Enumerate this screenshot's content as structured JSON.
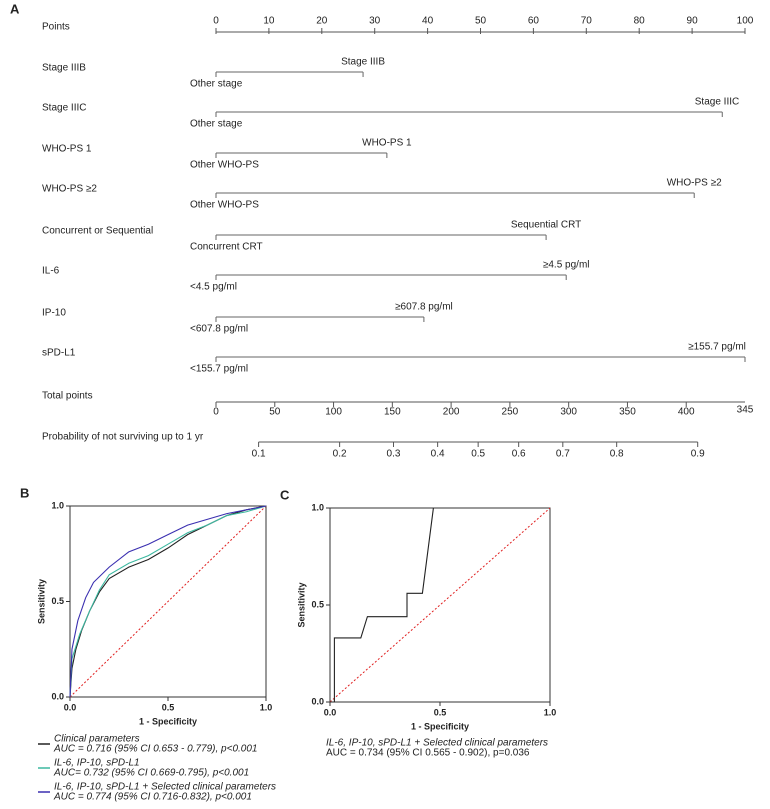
{
  "chart_data": [
    {
      "type": "nomogram",
      "panel_label": "A",
      "points_label": "Points",
      "xlim": [
        0,
        100
      ],
      "xticks": [
        0,
        10,
        20,
        30,
        40,
        50,
        60,
        70,
        80,
        90,
        100
      ],
      "rows": [
        {
          "label": "Stage IIIB",
          "low": "Other stage",
          "high": "Stage IIIB",
          "points": 27.8
        },
        {
          "label": "Stage IIIC",
          "low": "Other stage",
          "high": "Stage IIIC",
          "points": 95.7
        },
        {
          "label": "WHO-PS 1",
          "low": "Other WHO-PS",
          "high": "WHO-PS 1",
          "points": 32.3
        },
        {
          "label": "WHO-PS ≥2",
          "low": "Other WHO-PS",
          "high": "WHO-PS ≥2",
          "points": 90.4
        },
        {
          "label": "Concurrent or Sequential",
          "low": "Concurrent CRT",
          "high": "Sequential CRT",
          "points": 62.4
        },
        {
          "label": "IL-6",
          "low": "<4.5 pg/ml",
          "high": "≥4.5 pg/ml",
          "points": 66.2
        },
        {
          "label": "IP-10",
          "low": "<607.8 pg/ml",
          "high": "≥607.8 pg/ml",
          "points": 39.3
        },
        {
          "label": "sPD-L1",
          "low": "<155.7 pg/ml",
          "high": "≥155.7 pg/ml",
          "points": 100
        }
      ],
      "total_label": "Total points",
      "total_xlim": [
        0,
        450
      ],
      "total_xticks": [
        0,
        50,
        100,
        150,
        200,
        250,
        300,
        350,
        400
      ],
      "total_end_label": "345",
      "prob_label": "Probability of not surviving up to 1 yr",
      "prob_ticks": [
        0.1,
        0.2,
        0.3,
        0.4,
        0.5,
        0.6,
        0.7,
        0.8,
        0.9
      ],
      "logit_intercept": 223,
      "logit_slope": 85
    },
    {
      "type": "line",
      "panel_label": "B",
      "xlabel": "1 - Specificity",
      "ylabel": "Sensitivity",
      "xlim": [
        0,
        1
      ],
      "ylim": [
        0,
        1
      ],
      "xticks": [
        {
          "value": 0,
          "label": "0.0"
        },
        0.5,
        {
          "value": 1,
          "label": "1.0"
        }
      ],
      "yticks": [
        {
          "value": 0,
          "label": "0.0"
        },
        0.5,
        {
          "value": 1,
          "label": "1.0"
        }
      ],
      "series": [
        {
          "name": "Clinical parameters",
          "auc": "AUC = 0.716 (95%  CI 0.653 - 0.779), p<0.001",
          "color": "#222222",
          "x": [
            0,
            0.01,
            0.03,
            0.06,
            0.1,
            0.15,
            0.2,
            0.3,
            0.4,
            0.5,
            0.6,
            0.7,
            0.8,
            0.9,
            1
          ],
          "values": [
            0,
            0.15,
            0.25,
            0.35,
            0.45,
            0.55,
            0.62,
            0.68,
            0.72,
            0.78,
            0.85,
            0.9,
            0.95,
            0.98,
            1
          ]
        },
        {
          "name": "IL-6,  IP-10,  sPD-L1",
          "auc": "AUC= 0.732  (95%  CI 0.669-0.795), p<0.001",
          "color": "#3cb8a0",
          "x": [
            0,
            0.01,
            0.05,
            0.1,
            0.15,
            0.2,
            0.3,
            0.4,
            0.5,
            0.6,
            0.7,
            0.8,
            0.9,
            1
          ],
          "values": [
            0,
            0.2,
            0.33,
            0.45,
            0.56,
            0.64,
            0.7,
            0.74,
            0.8,
            0.86,
            0.9,
            0.95,
            0.97,
            1
          ]
        },
        {
          "name": "IL-6,  IP-10,  sPD-L1 + Selected clinical parameters",
          "auc": "AUC = 0.774  (95%  CI 0.716-0.832), p<0.001",
          "color": "#3a2fb0",
          "x": [
            0,
            0.01,
            0.04,
            0.08,
            0.12,
            0.2,
            0.3,
            0.4,
            0.5,
            0.6,
            0.7,
            0.8,
            0.9,
            1
          ],
          "values": [
            0,
            0.25,
            0.4,
            0.52,
            0.6,
            0.68,
            0.76,
            0.8,
            0.85,
            0.9,
            0.93,
            0.96,
            0.98,
            1
          ]
        }
      ]
    },
    {
      "type": "line",
      "panel_label": "C",
      "xlabel": "1 - Specificity",
      "ylabel": "Sensitivity",
      "xlim": [
        0,
        1
      ],
      "ylim": [
        0,
        1
      ],
      "xticks": [
        {
          "value": 0,
          "label": "0.0"
        },
        0.5,
        {
          "value": 1,
          "label": "1.0"
        }
      ],
      "yticks": [
        {
          "value": 0,
          "label": "0.0"
        },
        0.5,
        {
          "value": 1,
          "label": "1.0"
        }
      ],
      "series": [
        {
          "name": "IL-6,  IP-10,  sPD-L1 + Selected clinical parameters",
          "auc": "AUC = 0.734 (95%  CI 0.565 - 0.902), p=0.036",
          "color": "#222222",
          "x": [
            0,
            0.02,
            0.02,
            0.14,
            0.17,
            0.35,
            0.35,
            0.42,
            0.47
          ],
          "values": [
            0,
            0,
            0.33,
            0.33,
            0.44,
            0.44,
            0.56,
            0.56,
            1
          ]
        }
      ]
    }
  ]
}
